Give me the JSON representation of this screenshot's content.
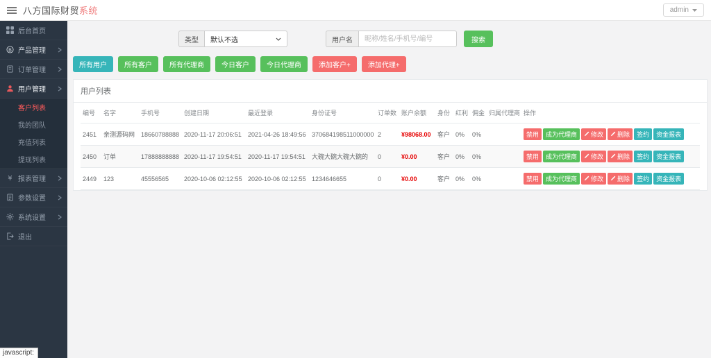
{
  "header": {
    "brand": "八方国际财贸",
    "brand_accent": "系统",
    "user_menu_label": "admin"
  },
  "sidebar": {
    "menu": [
      {
        "name": "dashboard",
        "label": "后台首页",
        "icon": "dashboard-icon",
        "has_arrow": false,
        "state": "normal"
      },
      {
        "name": "products",
        "label": "产品管理",
        "icon": "product-icon",
        "has_arrow": true,
        "state": "bright"
      },
      {
        "name": "orders",
        "label": "订单管理",
        "icon": "order-icon",
        "has_arrow": true,
        "state": "normal"
      },
      {
        "name": "users",
        "label": "用户管理",
        "icon": "users-icon",
        "has_arrow": true,
        "state": "active",
        "children": [
          {
            "name": "customer-list",
            "label": "客户列表",
            "active": true
          },
          {
            "name": "my-team",
            "label": "我的团队",
            "active": false
          },
          {
            "name": "recharge-list",
            "label": "充值列表",
            "active": false
          },
          {
            "name": "withdraw-list",
            "label": "提现列表",
            "active": false
          }
        ]
      },
      {
        "name": "reports",
        "label": "报表管理",
        "icon": "yen-icon",
        "has_arrow": true,
        "state": "normal"
      },
      {
        "name": "params",
        "label": "参数设置",
        "icon": "params-icon",
        "has_arrow": true,
        "state": "normal"
      },
      {
        "name": "system",
        "label": "系统设置",
        "icon": "gear-icon",
        "has_arrow": true,
        "state": "normal"
      },
      {
        "name": "logout",
        "label": "退出",
        "icon": "logout-icon",
        "has_arrow": false,
        "state": "normal"
      }
    ]
  },
  "filters": {
    "type_label": "类型",
    "type_selected": "默认不选",
    "username_label": "用户名",
    "username_placeholder": "昵称/姓名/手机号/编号",
    "search_button": "搜索"
  },
  "toolbar": {
    "buttons": [
      {
        "name": "all-users",
        "label": "所有用户",
        "color": "#36b5b9"
      },
      {
        "name": "all-customers",
        "label": "所有客户",
        "color": "#57c05c"
      },
      {
        "name": "all-agents",
        "label": "所有代理商",
        "color": "#57c05c"
      },
      {
        "name": "today-customers",
        "label": "今日客户",
        "color": "#57c05c"
      },
      {
        "name": "today-agents",
        "label": "今日代理商",
        "color": "#57c05c"
      },
      {
        "name": "add-customer",
        "label": "添加客户+",
        "color": "#f56c6c"
      },
      {
        "name": "add-agent",
        "label": "添加代理+",
        "color": "#f56c6c"
      }
    ]
  },
  "panel": {
    "title": "用户列表",
    "columns": [
      "编号",
      "名字",
      "手机号",
      "创建日期",
      "最近登录",
      "身份证号",
      "订单数",
      "账户余额",
      "身份",
      "红利",
      "佣金",
      "归属代理商",
      "操作"
    ],
    "rows": [
      {
        "id": "2451",
        "name": "亲测源码网",
        "phone": "18660788888",
        "created": "2020-11-17 20:06:51",
        "last_login": "2021-04-26 18:49:56",
        "id_card": "370684198511000000",
        "orders": "2",
        "balance": "¥98068.00",
        "role": "客户",
        "bonus": "0%",
        "commission": "0%",
        "agent": ""
      },
      {
        "id": "2450",
        "name": "订单",
        "phone": "17888888888",
        "created": "2020-11-17 19:54:51",
        "last_login": "2020-11-17 19:54:51",
        "id_card": "大碗大碗大碗大碗的",
        "orders": "0",
        "balance": "¥0.00",
        "role": "客户",
        "bonus": "0%",
        "commission": "0%",
        "agent": ""
      },
      {
        "id": "2449",
        "name": "123",
        "phone": "45556565",
        "created": "2020-10-06 02:12:55",
        "last_login": "2020-10-06 02:12:55",
        "id_card": "1234646655",
        "orders": "0",
        "balance": "¥0.00",
        "role": "客户",
        "bonus": "0%",
        "commission": "0%",
        "agent": ""
      }
    ],
    "row_actions": [
      {
        "name": "disable",
        "label": "禁用",
        "color": "#f56c6c",
        "icon": ""
      },
      {
        "name": "become-agent",
        "label": "成为代理商",
        "color": "#57c05c",
        "icon": ""
      },
      {
        "name": "edit",
        "label": "修改",
        "color": "#f56c6c",
        "icon": "pencil-icon"
      },
      {
        "name": "delete",
        "label": "删除",
        "color": "#f56c6c",
        "icon": "pencil-icon"
      },
      {
        "name": "sign",
        "label": "签约",
        "color": "#36b5b9",
        "icon": ""
      },
      {
        "name": "fund-report",
        "label": "资金报表",
        "color": "#36b5b9",
        "icon": ""
      }
    ]
  },
  "statusbar": {
    "text": "javascript:"
  },
  "colors": {
    "teal": "#36b5b9",
    "green": "#57c05c",
    "salmon": "#f56c6c",
    "balance_red": "#e60000",
    "sidebar_bg": "#2b3643",
    "content_bg": "#f3f3f4"
  }
}
